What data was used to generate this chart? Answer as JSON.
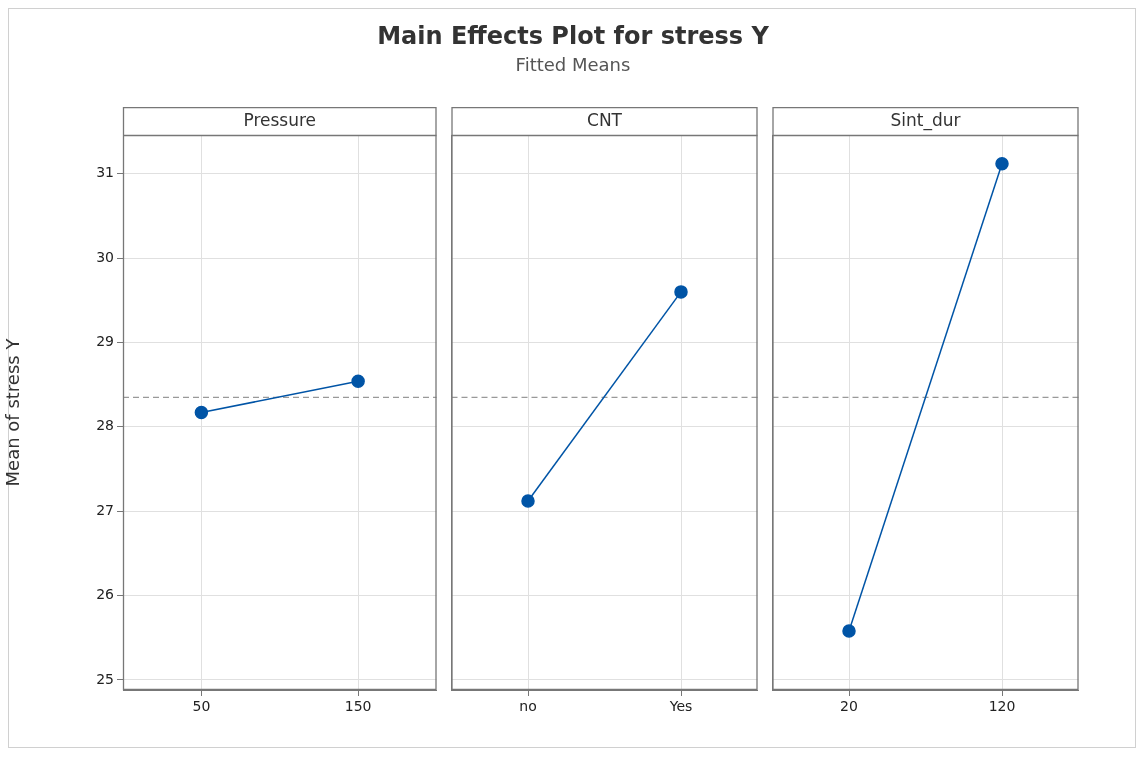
{
  "chart_data": [
    {
      "type": "other",
      "title": "Main Effects Plot for stress Y",
      "subtitle": "Fitted Means"
    },
    {
      "type": "line",
      "title": "Pressure",
      "ylabel": "Mean of stress Y",
      "categories": [
        "50",
        "150"
      ],
      "values": [
        28.17,
        28.54
      ],
      "color": "#0054a6",
      "ylim": [
        24.88,
        31.46
      ],
      "yticks": [
        25,
        26,
        27,
        28,
        29,
        30,
        31
      ],
      "grid": true,
      "marker": "circle",
      "line_style": "solid",
      "ref_lines": [
        {
          "axis": "y",
          "value": 28.35,
          "color": "#999999",
          "line_style": "dashed"
        }
      ]
    },
    {
      "type": "line",
      "title": "CNT",
      "categories": [
        "no",
        "Yes"
      ],
      "values": [
        27.12,
        29.6
      ],
      "color": "#0054a6",
      "ylim": [
        24.88,
        31.46
      ],
      "yticks": [
        25,
        26,
        27,
        28,
        29,
        30,
        31
      ],
      "grid": true,
      "marker": "circle",
      "line_style": "solid",
      "tick_labels": "x",
      "ref_lines": [
        {
          "axis": "y",
          "value": 28.35,
          "color": "#999999",
          "line_style": "dashed"
        }
      ]
    },
    {
      "type": "line",
      "title": "Sint_dur",
      "categories": [
        "20",
        "120"
      ],
      "values": [
        25.58,
        31.12
      ],
      "color": "#0054a6",
      "ylim": [
        24.88,
        31.46
      ],
      "yticks": [
        25,
        26,
        27,
        28,
        29,
        30,
        31
      ],
      "grid": true,
      "marker": "circle",
      "line_style": "solid",
      "tick_labels": "x",
      "ref_lines": [
        {
          "axis": "y",
          "value": 28.35,
          "color": "#999999",
          "line_style": "dashed"
        }
      ]
    }
  ]
}
